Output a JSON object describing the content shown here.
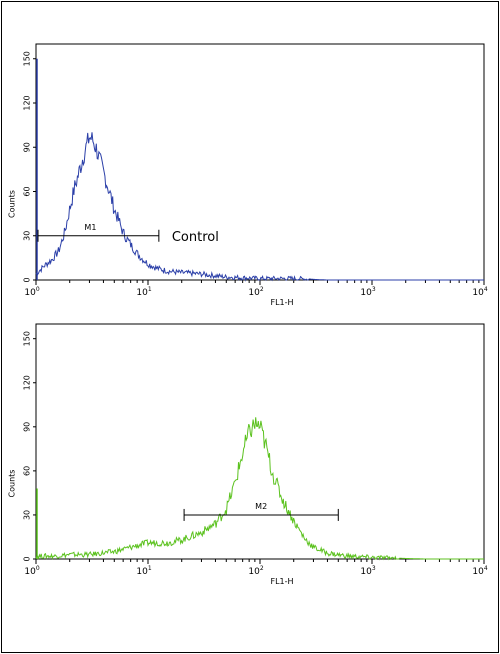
{
  "chart_data": [
    {
      "type": "histogram",
      "panel": "top",
      "xlabel": "FL1-H",
      "ylabel": "Counts",
      "x_scale": "log",
      "xlim": [
        1,
        10000
      ],
      "ylim": [
        0,
        160
      ],
      "x_ticks": [
        {
          "base": "10",
          "exp": "0"
        },
        {
          "base": "10",
          "exp": "1"
        },
        {
          "base": "10",
          "exp": "2"
        },
        {
          "base": "10",
          "exp": "3"
        },
        {
          "base": "10",
          "exp": "4"
        }
      ],
      "y_ticks": [
        "0",
        "30",
        "60",
        "90",
        "120",
        "150"
      ],
      "line_color": "#2b3fa8",
      "marker": {
        "label": "M1",
        "x_range": [
          1,
          12.5
        ],
        "y": 30
      },
      "annotation": "Control",
      "x": [
        1.0,
        1.2,
        1.4,
        1.6,
        1.8,
        2.0,
        2.2,
        2.4,
        2.6,
        2.8,
        3.0,
        3.2,
        3.5,
        3.8,
        4.2,
        4.6,
        5.0,
        5.5,
        6.0,
        7.0,
        8.0,
        9.0,
        10.0,
        12.0,
        15.0,
        20.0,
        30.0,
        50.0,
        100.0,
        200.0,
        400.0,
        1000.0,
        10000.0
      ],
      "y": [
        4,
        10,
        14,
        20,
        32,
        48,
        62,
        72,
        82,
        90,
        97,
        95,
        88,
        78,
        68,
        58,
        48,
        40,
        32,
        24,
        18,
        14,
        11,
        8,
        6,
        5,
        4,
        2,
        1,
        1,
        0,
        0,
        0
      ]
    },
    {
      "type": "histogram",
      "panel": "bottom",
      "xlabel": "FL1-H",
      "ylabel": "Counts",
      "x_scale": "log",
      "xlim": [
        1,
        10000
      ],
      "ylim": [
        0,
        160
      ],
      "x_ticks": [
        {
          "base": "10",
          "exp": "0"
        },
        {
          "base": "10",
          "exp": "1"
        },
        {
          "base": "10",
          "exp": "2"
        },
        {
          "base": "10",
          "exp": "3"
        },
        {
          "base": "10",
          "exp": "4"
        }
      ],
      "y_ticks": [
        "0",
        "30",
        "60",
        "90",
        "120",
        "150"
      ],
      "line_color": "#5cc21f",
      "marker": {
        "label": "M2",
        "x_range": [
          21,
          500
        ],
        "y": 30
      },
      "x": [
        1.0,
        1.5,
        2.0,
        3.0,
        5.0,
        7.0,
        10.0,
        15.0,
        20.0,
        30.0,
        40.0,
        50.0,
        60.0,
        70.0,
        80.0,
        90.0,
        100.0,
        110.0,
        130.0,
        160.0,
        200.0,
        250.0,
        300.0,
        400.0,
        600.0,
        1000.0,
        3000.0,
        10000.0
      ],
      "y": [
        2,
        2,
        3,
        3,
        5,
        8,
        11,
        11,
        13,
        18,
        24,
        34,
        52,
        72,
        86,
        92,
        90,
        80,
        58,
        40,
        26,
        14,
        8,
        4,
        2,
        1,
        0,
        0
      ]
    }
  ]
}
